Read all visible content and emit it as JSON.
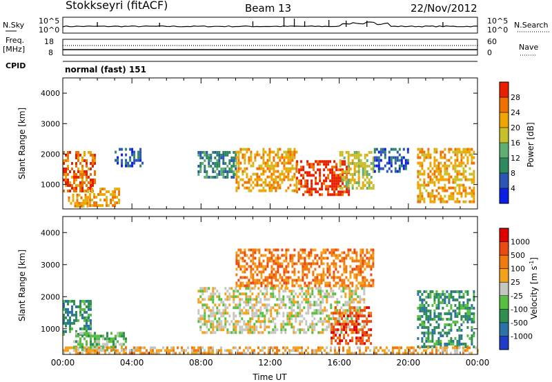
{
  "header": {
    "station": "Stokkseyri (fitACF)",
    "beam": "Beam 13",
    "date": "22/Nov/2012"
  },
  "status_panels": {
    "nsky_label": "N.Sky",
    "freq_label_1": "Freq.",
    "freq_label_2": "[MHz]",
    "cpid_label": "CPID",
    "nsearch_label": "N.Search",
    "nave_label": "Nave",
    "cpid_value": "normal (fast) 151",
    "noise_left_ticks": [
      "10^5",
      "10^0"
    ],
    "noise_right_ticks": [
      "10^5",
      "10^0"
    ],
    "freq_left_ticks": [
      "18",
      "8"
    ],
    "freq_right_ticks": [
      "60",
      "0"
    ]
  },
  "chart_data": [
    {
      "type": "heatmap",
      "name": "power",
      "ylabel": "Slant Range [km]",
      "ylim": [
        200,
        4500
      ],
      "yticks": [
        "1000",
        "2000",
        "3000",
        "4000"
      ],
      "xlim": [
        0,
        24
      ],
      "colorbar": {
        "label": "Power [dB]",
        "ticks": [
          "4",
          "8",
          "12",
          "16",
          "20",
          "24",
          "28"
        ],
        "colors": [
          "#0b1ee6",
          "#2c55b8",
          "#2d8a5c",
          "#5fae72",
          "#c7c02b",
          "#f0a500",
          "#f07000",
          "#e82000"
        ]
      },
      "regions": [
        {
          "x0": 0.0,
          "x1": 1.8,
          "r0": 800,
          "r1": 2100,
          "level": 6
        },
        {
          "x0": 0.3,
          "x1": 1.6,
          "r0": 250,
          "r1": 700,
          "level": 5
        },
        {
          "x0": 1.4,
          "x1": 3.4,
          "r0": 300,
          "r1": 900,
          "level": 5
        },
        {
          "x0": 3.0,
          "x1": 4.6,
          "r0": 1600,
          "r1": 2200,
          "level": 1
        },
        {
          "x0": 7.8,
          "x1": 10.0,
          "r0": 1200,
          "r1": 2100,
          "level": 2
        },
        {
          "x0": 10.0,
          "x1": 13.5,
          "r0": 800,
          "r1": 2200,
          "level": 5
        },
        {
          "x0": 13.5,
          "x1": 16.5,
          "r0": 700,
          "r1": 1800,
          "level": 7
        },
        {
          "x0": 16.0,
          "x1": 18.0,
          "r0": 900,
          "r1": 2100,
          "level": 4
        },
        {
          "x0": 18.0,
          "x1": 20.0,
          "r0": 1400,
          "r1": 2200,
          "level": 1
        },
        {
          "x0": 20.5,
          "x1": 23.8,
          "r0": 400,
          "r1": 2200,
          "level": 5
        }
      ]
    },
    {
      "type": "heatmap",
      "name": "velocity",
      "ylabel": "Slant Range [km]",
      "xlabel": "Time UT",
      "ylim": [
        200,
        4500
      ],
      "yticks": [
        "1000",
        "2000",
        "3000",
        "4000"
      ],
      "xlim": [
        0,
        24
      ],
      "xticks": [
        "00:00",
        "04:00",
        "08:00",
        "12:00",
        "16:00",
        "20:00",
        "00:00"
      ],
      "colorbar": {
        "label": "Velocity [m s",
        "label_exponent": "-1",
        "label_close": "]",
        "ticks": [
          "1000",
          "500",
          "100",
          "25",
          "-25",
          "-100",
          "-500",
          "-1000"
        ],
        "colors": [
          "#1f3cc8",
          "#2a72a8",
          "#2f8f50",
          "#58c040",
          "#c6c6c0",
          "#f4a21e",
          "#f07a10",
          "#e84a10",
          "#e10000"
        ]
      },
      "regions": [
        {
          "x0": 0.0,
          "x1": 1.6,
          "r0": 800,
          "r1": 1900,
          "level": 2
        },
        {
          "x0": 0.6,
          "x1": 3.6,
          "r0": 300,
          "r1": 900,
          "level": 3
        },
        {
          "x0": 7.8,
          "x1": 17.5,
          "r0": 900,
          "r1": 2300,
          "level": 4
        },
        {
          "x0": 15.5,
          "x1": 17.8,
          "r0": 500,
          "r1": 1700,
          "level": 7
        },
        {
          "x0": 10.0,
          "x1": 18.0,
          "r0": 2300,
          "r1": 3500,
          "level": 6
        },
        {
          "x0": 20.5,
          "x1": 23.8,
          "r0": 400,
          "r1": 2200,
          "level": 2
        },
        {
          "x0": 0.0,
          "x1": 24.0,
          "r0": 200,
          "r1": 450,
          "level": 5
        }
      ]
    }
  ]
}
